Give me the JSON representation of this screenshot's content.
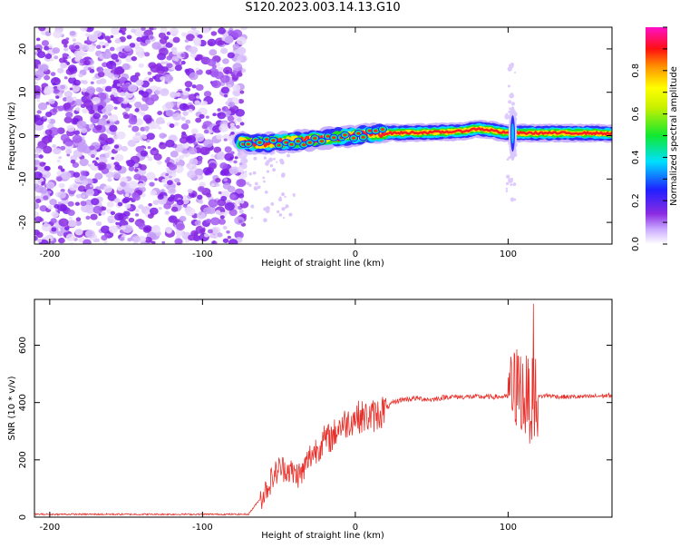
{
  "title": "S120.2023.003.14.13.G10",
  "chart_data": [
    {
      "type": "heatmap",
      "xlabel": "Height of straight line (km)",
      "ylabel": "Frequency (Hz)",
      "xlim": [
        -210,
        168
      ],
      "ylim": [
        -25,
        25
      ],
      "x_ticks": [
        -200,
        -100,
        0,
        100
      ],
      "y_ticks": [
        -20,
        -10,
        0,
        10,
        20
      ],
      "noise_region_x": [
        -210,
        -75
      ],
      "ridge": {
        "x": [
          -75,
          -65,
          -55,
          -45,
          -35,
          -25,
          -15,
          -5,
          5,
          15,
          25,
          40,
          55,
          70,
          80,
          90,
          95,
          100,
          105,
          110,
          120,
          135,
          150,
          168
        ],
        "freq": [
          -1.5,
          -1.8,
          -1.6,
          -1.4,
          -1.2,
          -0.8,
          -0.4,
          -0.2,
          0.2,
          0.5,
          0.6,
          0.7,
          0.8,
          1.0,
          1.6,
          1.2,
          0.8,
          0.6,
          0.6,
          0.6,
          0.6,
          0.6,
          0.6,
          0.5
        ]
      },
      "colorbar": {
        "label": "Normalized spectral amplitude",
        "range": [
          0.0,
          1.0
        ],
        "ticks": [
          0.0,
          0.2,
          0.4,
          0.6,
          0.8
        ],
        "tick_labels": [
          "0.0",
          "0.2",
          "0.4",
          "0.6",
          "0.8"
        ],
        "colormap": "rainbow (white-purple-blue-cyan-green-yellow-orange-red-magenta)"
      }
    },
    {
      "type": "line",
      "xlabel": "Height of straight line (km)",
      "ylabel": "SNR (10 * v/v)",
      "xlim": [
        -210,
        168
      ],
      "ylim": [
        0,
        760
      ],
      "x_ticks": [
        -200,
        -100,
        0,
        100
      ],
      "y_ticks": [
        0,
        200,
        400,
        600
      ],
      "series_color": "#e8302a",
      "x": [
        -210,
        -150,
        -100,
        -70,
        -60,
        -55,
        -50,
        -45,
        -40,
        -35,
        -30,
        -25,
        -20,
        -15,
        -10,
        -5,
        0,
        5,
        10,
        15,
        20,
        25,
        30,
        40,
        50,
        60,
        70,
        80,
        90,
        100,
        105,
        108,
        110,
        112,
        115,
        118,
        120,
        125,
        135,
        150,
        168
      ],
      "y": [
        10,
        10,
        10,
        10,
        80,
        130,
        170,
        170,
        150,
        150,
        210,
        240,
        270,
        280,
        320,
        330,
        350,
        350,
        350,
        360,
        380,
        400,
        410,
        415,
        410,
        420,
        420,
        420,
        420,
        420,
        450,
        460,
        410,
        420,
        400,
        420,
        420,
        425,
        420,
        420,
        425
      ]
    }
  ]
}
